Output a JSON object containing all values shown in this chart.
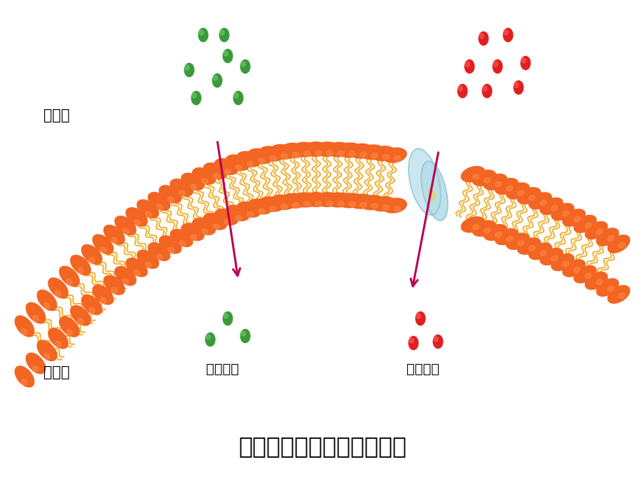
{
  "title": "自由扩散和协助扩散示意图",
  "label_outside": "细胞外",
  "label_inside": "细胞内",
  "label_free": "自由扩散",
  "label_assisted": "协助扩散",
  "membrane_color": "#F26522",
  "membrane_highlight": "#FF8844",
  "tail_color": "#F0B030",
  "green_color": "#3A9A3A",
  "green_highlight": "#70CC70",
  "red_color": "#E02020",
  "red_highlight": "#FF6060",
  "protein_color": "#B8DDE8",
  "protein_outline": "#7ABCCC",
  "arrow_color": "#BB0055",
  "background": "#FFFFFF",
  "title_fontsize": 24,
  "label_fontsize": 15,
  "sublabel_fontsize": 14
}
